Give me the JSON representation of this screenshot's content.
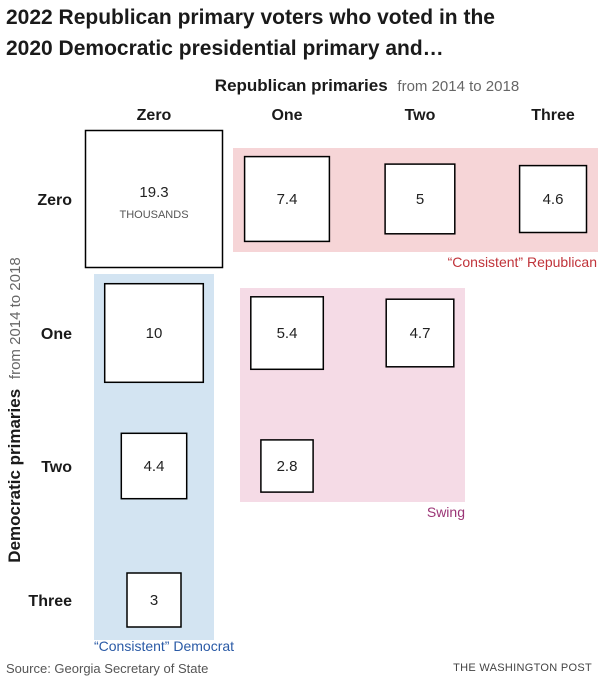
{
  "title_lines": [
    "2022 Republican primary voters who voted in the",
    "2020 Democratic presidential primary and…"
  ],
  "colors": {
    "republican": "#f6d5d7",
    "republican_text": "#c0333a",
    "swing": "#f5dbe6",
    "swing_text": "#9b3576",
    "democrat": "#d3e4f2",
    "democrat_text": "#2a5aa6",
    "square_stroke": "#000000"
  },
  "chart_data": {
    "type": "heatmap",
    "encoding": "square area proportional to value",
    "x_axis": {
      "label_bold": "Republican primaries",
      "label_light": "from 2014 to 2018",
      "categories": [
        "Zero",
        "One",
        "Two",
        "Three"
      ]
    },
    "y_axis": {
      "label_bold": "Democratic primaries",
      "label_light": "from 2014 to 2018",
      "categories": [
        "Zero",
        "One",
        "Two",
        "Three"
      ]
    },
    "unit_note": "THOUSANDS",
    "cells": [
      {
        "row": 0,
        "col": 0,
        "value": 19.3,
        "label": "19.3"
      },
      {
        "row": 0,
        "col": 1,
        "value": 7.4,
        "label": "7.4"
      },
      {
        "row": 0,
        "col": 2,
        "value": 5,
        "label": "5"
      },
      {
        "row": 0,
        "col": 3,
        "value": 4.6,
        "label": "4.6"
      },
      {
        "row": 1,
        "col": 0,
        "value": 10,
        "label": "10"
      },
      {
        "row": 1,
        "col": 1,
        "value": 5.4,
        "label": "5.4"
      },
      {
        "row": 1,
        "col": 2,
        "value": 4.7,
        "label": "4.7"
      },
      {
        "row": 2,
        "col": 0,
        "value": 4.4,
        "label": "4.4"
      },
      {
        "row": 2,
        "col": 1,
        "value": 2.8,
        "label": "2.8"
      },
      {
        "row": 3,
        "col": 0,
        "value": 3,
        "label": "3"
      }
    ],
    "groups": [
      {
        "key": "republican",
        "label": "“Consistent” Republican"
      },
      {
        "key": "swing",
        "label": "Swing"
      },
      {
        "key": "democrat",
        "label": "“Consistent” Democrat"
      }
    ]
  },
  "source": "Source: Georgia Secretary of State",
  "credit": "THE WASHINGTON POST"
}
